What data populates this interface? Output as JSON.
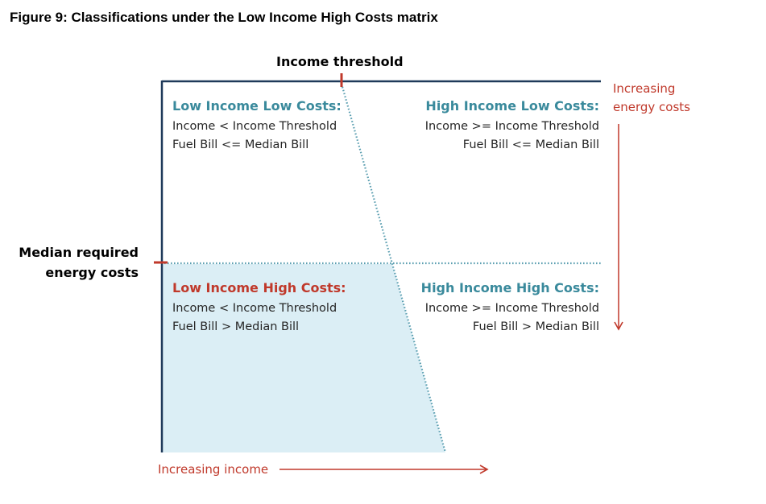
{
  "figure_title": "Figure 9: Classifications under the Low Income High Costs matrix",
  "axes": {
    "income_threshold_label": "Income threshold",
    "median_costs_label_line1": "Median required",
    "median_costs_label_line2": "energy costs",
    "increasing_income_label": "Increasing income",
    "increasing_costs_label_line1": "Increasing",
    "increasing_costs_label_line2": "energy costs"
  },
  "quadrants": {
    "low_income_low_costs": {
      "title": "Low Income Low Costs:",
      "line1": "Income < Income Threshold",
      "line2": "Fuel Bill <= Median Bill"
    },
    "high_income_low_costs": {
      "title": "High Income Low Costs:",
      "line1": "Income >= Income Threshold",
      "line2": "Fuel Bill <= Median Bill"
    },
    "low_income_high_costs": {
      "title": "Low Income High Costs:",
      "line1": "Income < Income Threshold",
      "line2": "Fuel Bill > Median Bill"
    },
    "high_income_high_costs": {
      "title": "High Income High Costs:",
      "line1": "Income >= Income Threshold",
      "line2": "Fuel Bill > Median Bill"
    }
  },
  "colors": {
    "frame": "#1f3a5a",
    "teal_title": "#3a8a9c",
    "red_accent": "#c0392b",
    "shaded_region": "#dbeef5",
    "dotted_line": "#5a9eb0"
  }
}
